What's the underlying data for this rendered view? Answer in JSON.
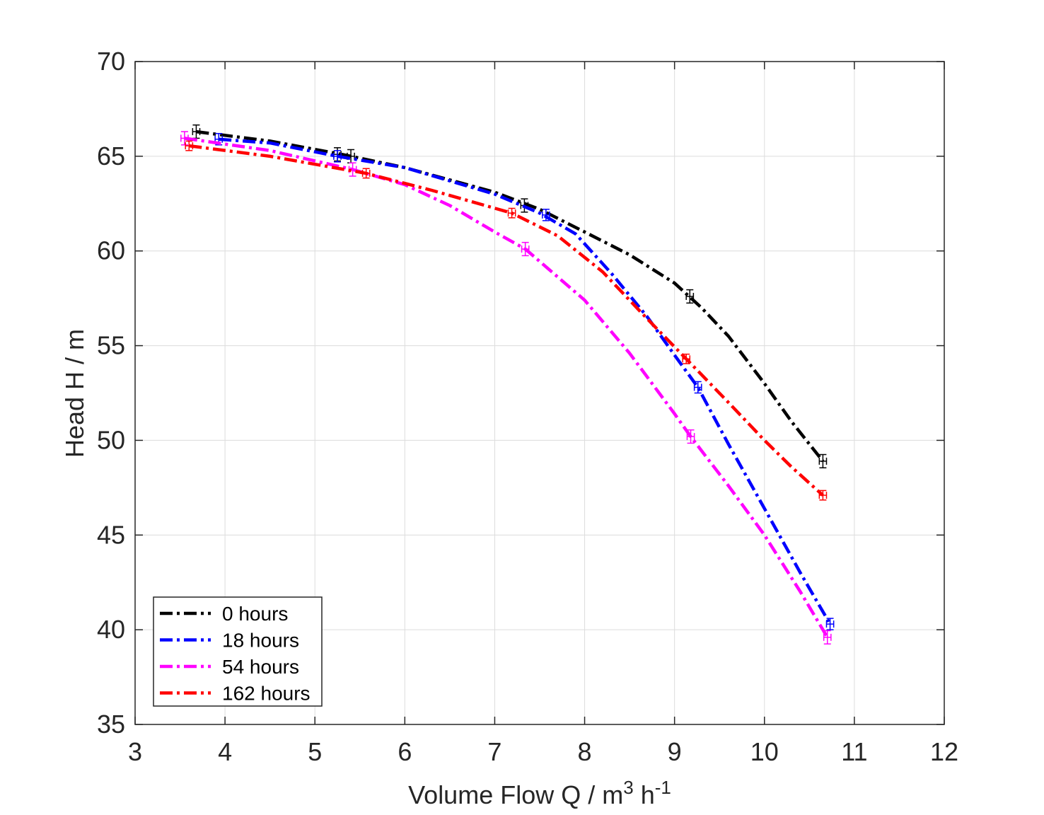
{
  "chart_data": {
    "type": "line",
    "title": "",
    "xlabel": "Volume Flow Q / m",
    "xlabel_sup1": "3",
    "xlabel_mid": " h",
    "xlabel_sup2": "-1",
    "ylabel": "Head H / m",
    "xlim": [
      3,
      12
    ],
    "ylim": [
      35,
      70
    ],
    "xticks": [
      3,
      4,
      5,
      6,
      7,
      8,
      9,
      10,
      11,
      12
    ],
    "yticks": [
      35,
      40,
      45,
      50,
      55,
      60,
      65,
      70
    ],
    "grid": true,
    "legend_position": "bottom-left",
    "series": [
      {
        "name": "0 hours",
        "color": "#000000",
        "x": [
          3.68,
          5.25,
          5.4,
          7.33,
          9.17,
          10.65
        ],
        "y": [
          66.3,
          65.1,
          65.0,
          62.4,
          57.6,
          48.9
        ],
        "curve": [
          [
            3.68,
            66.3
          ],
          [
            4.5,
            65.8
          ],
          [
            5.3,
            65.1
          ],
          [
            6.0,
            64.4
          ],
          [
            7.0,
            63.1
          ],
          [
            7.5,
            62.2
          ],
          [
            8.0,
            61.0
          ],
          [
            8.5,
            59.8
          ],
          [
            9.0,
            58.3
          ],
          [
            9.3,
            57.0
          ],
          [
            9.6,
            55.5
          ],
          [
            10.0,
            53.0
          ],
          [
            10.3,
            51.0
          ],
          [
            10.65,
            48.9
          ]
        ],
        "err_y": 0.35,
        "err_x": 0.04
      },
      {
        "name": "18 hours",
        "color": "#0000ff",
        "x": [
          3.93,
          5.25,
          7.57,
          9.26,
          10.73
        ],
        "y": [
          65.9,
          65.0,
          61.9,
          52.8,
          40.3
        ],
        "curve": [
          [
            3.93,
            65.9
          ],
          [
            4.5,
            65.7
          ],
          [
            5.25,
            65.0
          ],
          [
            6.0,
            64.4
          ],
          [
            7.0,
            63.0
          ],
          [
            7.5,
            62.0
          ],
          [
            7.9,
            60.9
          ],
          [
            8.3,
            58.8
          ],
          [
            8.7,
            56.5
          ],
          [
            9.0,
            54.5
          ],
          [
            9.26,
            52.8
          ],
          [
            9.6,
            49.8
          ],
          [
            10.0,
            46.4
          ],
          [
            10.4,
            43.0
          ],
          [
            10.73,
            40.3
          ]
        ],
        "err_y": 0.3,
        "err_x": 0.04
      },
      {
        "name": "54 hours",
        "color": "#ff00ff",
        "x": [
          3.55,
          5.42,
          7.34,
          9.18,
          10.7
        ],
        "y": [
          65.95,
          64.3,
          60.1,
          50.2,
          39.6
        ],
        "curve": [
          [
            3.55,
            65.95
          ],
          [
            4.5,
            65.3
          ],
          [
            5.42,
            64.3
          ],
          [
            6.0,
            63.5
          ],
          [
            6.5,
            62.4
          ],
          [
            7.0,
            61.0
          ],
          [
            7.34,
            60.1
          ],
          [
            8.0,
            57.4
          ],
          [
            8.5,
            54.6
          ],
          [
            9.0,
            51.4
          ],
          [
            9.18,
            50.2
          ],
          [
            9.6,
            47.6
          ],
          [
            10.0,
            45.0
          ],
          [
            10.4,
            42.0
          ],
          [
            10.7,
            39.6
          ]
        ],
        "err_y": 0.35,
        "err_x": 0.04
      },
      {
        "name": "162 hours",
        "color": "#ff0000",
        "x": [
          3.6,
          5.57,
          7.19,
          9.13,
          10.65
        ],
        "y": [
          65.55,
          64.1,
          62.0,
          54.3,
          47.1
        ],
        "curve": [
          [
            3.6,
            65.55
          ],
          [
            4.5,
            65.0
          ],
          [
            5.57,
            64.1
          ],
          [
            6.3,
            63.2
          ],
          [
            7.19,
            62.0
          ],
          [
            7.7,
            60.8
          ],
          [
            8.2,
            58.9
          ],
          [
            8.7,
            56.4
          ],
          [
            9.13,
            54.3
          ],
          [
            9.6,
            52.0
          ],
          [
            10.0,
            50.0
          ],
          [
            10.3,
            48.6
          ],
          [
            10.65,
            47.1
          ]
        ],
        "err_y": 0.25,
        "err_x": 0.04
      }
    ]
  }
}
